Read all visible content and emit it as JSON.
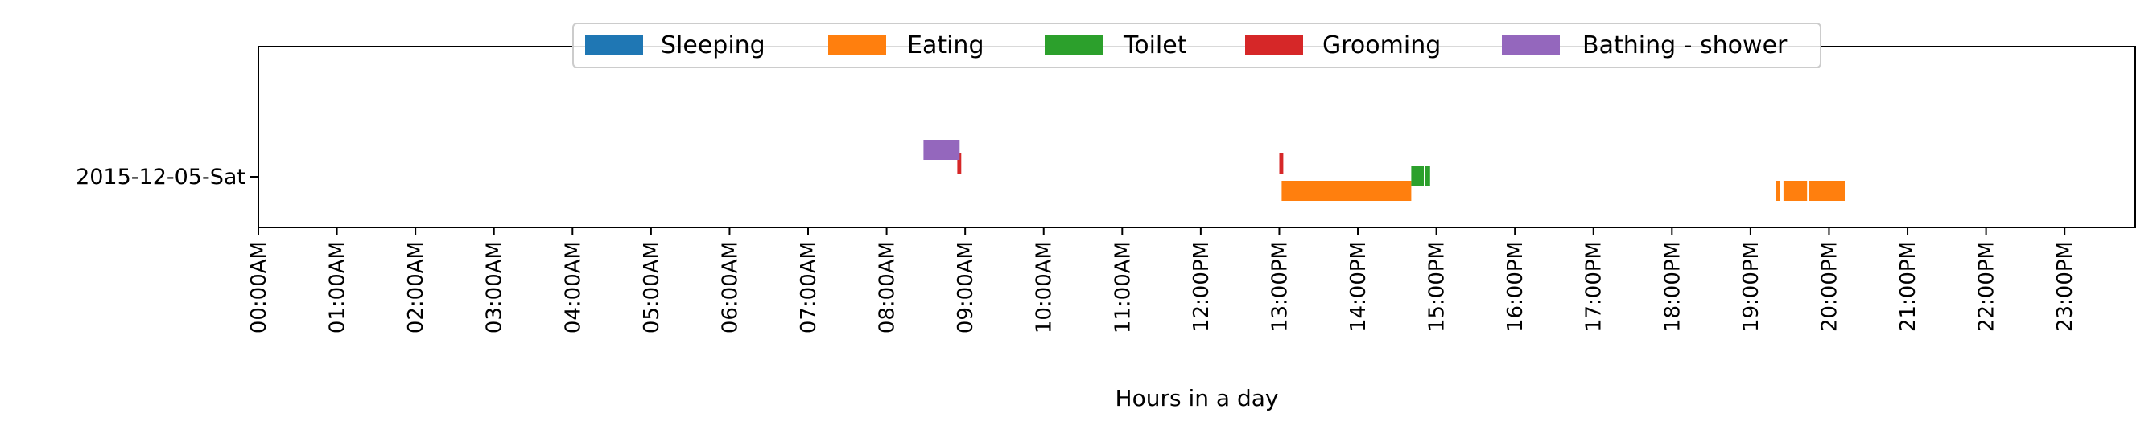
{
  "chart_data": {
    "type": "timeline",
    "title": "",
    "xlabel": "Hours in a day",
    "ylabel": "",
    "x_unit": "hours",
    "xlim": [
      0,
      23.9
    ],
    "categories": [
      "2015-12-05-Sat"
    ],
    "xtick_labels": [
      "00:00AM",
      "01:00AM",
      "02:00AM",
      "03:00AM",
      "04:00AM",
      "05:00AM",
      "06:00AM",
      "07:00AM",
      "08:00AM",
      "09:00AM",
      "10:00AM",
      "11:00AM",
      "12:00PM",
      "13:00PM",
      "14:00PM",
      "15:00PM",
      "16:00PM",
      "17:00PM",
      "18:00PM",
      "19:00PM",
      "20:00PM",
      "21:00PM",
      "22:00PM",
      "23:00PM"
    ],
    "legend_position": "top-center",
    "grid": false,
    "series": [
      {
        "name": "Sleeping",
        "color": "#1f77b4",
        "intervals": []
      },
      {
        "name": "Eating",
        "color": "#ff7f0e",
        "intervals": [
          {
            "day": "2015-12-05-Sat",
            "start": 13.03,
            "end": 14.68
          },
          {
            "day": "2015-12-05-Sat",
            "start": 19.32,
            "end": 19.38
          },
          {
            "day": "2015-12-05-Sat",
            "start": 19.42,
            "end": 19.72
          },
          {
            "day": "2015-12-05-Sat",
            "start": 19.74,
            "end": 20.2
          }
        ]
      },
      {
        "name": "Toilet",
        "color": "#2ca02c",
        "intervals": [
          {
            "day": "2015-12-05-Sat",
            "start": 14.68,
            "end": 14.84
          },
          {
            "day": "2015-12-05-Sat",
            "start": 14.86,
            "end": 14.92
          }
        ]
      },
      {
        "name": "Grooming",
        "color": "#d62728",
        "intervals": [
          {
            "day": "2015-12-05-Sat",
            "start": 13.0,
            "end": 13.05
          },
          {
            "day": "2015-12-05-Sat",
            "start": 8.9,
            "end": 8.95
          }
        ]
      },
      {
        "name": "Bathing - shower",
        "color": "#9467bd",
        "intervals": [
          {
            "day": "2015-12-05-Sat",
            "start": 8.47,
            "end": 8.93
          }
        ]
      }
    ]
  }
}
